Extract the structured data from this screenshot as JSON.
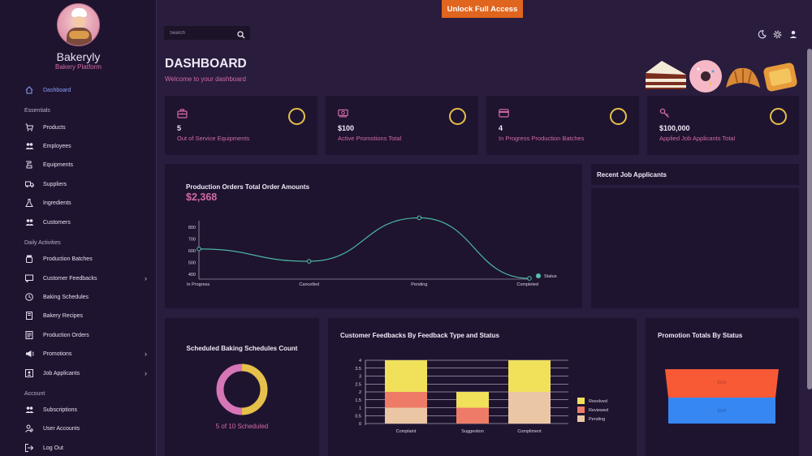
{
  "top": {
    "unlock_label": "Unlock Full Access",
    "search_placeholder": "Search"
  },
  "brand": {
    "name": "Bakeryly",
    "subtitle": "Bakery Platform"
  },
  "sidebar": {
    "dashboard": "Dashboard",
    "essentials_label": "Essentials",
    "essentials": [
      "Products",
      "Employees",
      "Equipments",
      "Suppliers",
      "Ingredients",
      "Customers"
    ],
    "daily_label": "Daily Activities",
    "daily": [
      "Production Batches",
      "Customer Feedbacks",
      "Baking Schedules",
      "Bakery Recipes",
      "Production Orders",
      "Promotions",
      "Job Applicants"
    ],
    "account_label": "Account",
    "account": [
      "Subscriptions",
      "User Accounts",
      "Log Out"
    ]
  },
  "header": {
    "title": "DASHBOARD",
    "subtitle": "Welcome to your dashboard"
  },
  "stats": [
    {
      "value": "5",
      "label": "Out of Service Equipments",
      "icon": "toolbox-icon"
    },
    {
      "value": "$100",
      "label": "Active Promotions Total",
      "icon": "cash-icon"
    },
    {
      "value": "4",
      "label": "In Progress Production Batches",
      "icon": "card-icon"
    },
    {
      "value": "$100,000",
      "label": "Applied Job Applicants Total",
      "icon": "wrench-icon"
    }
  ],
  "production_orders": {
    "title": "Production Orders Total Order Amounts",
    "total": "$2,368"
  },
  "recent_applicants": {
    "title": "Recent Job Applicants"
  },
  "baking": {
    "title": "Scheduled Baking Schedules Count",
    "caption": "5 of 10 Scheduled"
  },
  "feedback": {
    "title": "Customer Feedbacks By Feedback Type and Status"
  },
  "promotion": {
    "title": "Promotion Totals By Status",
    "labels": [
      "$100",
      "$100"
    ]
  },
  "colors": {
    "accent_pink": "#d16ba5",
    "ring_yellow": "#e5c04a",
    "unlock_orange": "#e0651e",
    "line_teal": "#4fc3b0",
    "bar_yellow": "#f0e05a",
    "bar_red": "#ee7b67",
    "bar_peach": "#ebc6a5"
  },
  "chart_data": [
    {
      "type": "line",
      "title": "Production Orders Total Order Amounts",
      "categories": [
        "In Progress",
        "Cancelled",
        "Pending",
        "Completed"
      ],
      "series": [
        {
          "name": "Status",
          "values": [
            615,
            510,
            880,
            365
          ]
        }
      ],
      "ylim": [
        365,
        880
      ],
      "yticks": [
        "800",
        "700",
        "600",
        "500",
        "400"
      ],
      "legend": "right"
    },
    {
      "type": "pie",
      "title": "Scheduled Baking Schedules Count",
      "values": [
        5,
        5
      ],
      "colors": [
        "#e5c04a",
        "#d676b6"
      ]
    },
    {
      "type": "bar",
      "stacked": true,
      "title": "Customer Feedbacks By Feedback Type and Status",
      "categories": [
        "Complaint",
        "Suggestion",
        "Compliment"
      ],
      "series": [
        {
          "name": "Pending",
          "values": [
            1,
            0,
            2
          ]
        },
        {
          "name": "Reviewed",
          "values": [
            1,
            1,
            0
          ]
        },
        {
          "name": "Resolved",
          "values": [
            2,
            1,
            2
          ]
        }
      ],
      "ylim": [
        0,
        4
      ],
      "yticks": [
        "4",
        "3.5",
        "3",
        "2.5",
        "2",
        "1.5",
        "1",
        "0.5",
        "0"
      ],
      "legend": "right"
    },
    {
      "type": "bar",
      "title": "Promotion Totals By Status",
      "series": [
        {
          "name": "",
          "values": [
            100,
            100
          ]
        }
      ],
      "value_labels": [
        "$100",
        "$100"
      ]
    }
  ]
}
